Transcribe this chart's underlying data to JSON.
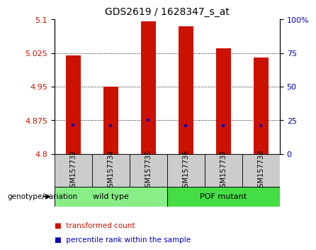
{
  "title": "GDS2619 / 1628347_s_at",
  "samples": [
    "GSM157732",
    "GSM157734",
    "GSM157735",
    "GSM157736",
    "GSM157737",
    "GSM157738"
  ],
  "bar_values": [
    5.02,
    4.95,
    5.095,
    5.085,
    5.035,
    5.015
  ],
  "percentile_values": [
    4.865,
    4.862,
    4.876,
    4.863,
    4.863,
    4.863
  ],
  "ylim_left": [
    4.8,
    5.1
  ],
  "ylim_right": [
    0,
    100
  ],
  "yticks_left": [
    4.8,
    4.875,
    4.95,
    5.025,
    5.1
  ],
  "ytick_labels_left": [
    "4.8",
    "4.875",
    "4.95",
    "5.025",
    "5.1"
  ],
  "yticks_right": [
    0,
    25,
    50,
    75,
    100
  ],
  "ytick_labels_right": [
    "0",
    "25",
    "50",
    "75",
    "100%"
  ],
  "bar_color": "#cc1100",
  "percentile_color": "#0000bb",
  "bar_width": 0.4,
  "groups": [
    {
      "label": "wild type",
      "indices": [
        0,
        1,
        2
      ],
      "color": "#88ee88"
    },
    {
      "label": "POF mutant",
      "indices": [
        3,
        4,
        5
      ],
      "color": "#44dd44"
    }
  ],
  "genotype_label": "genotype/variation",
  "legend_items": [
    {
      "label": "transformed count",
      "color": "#cc1100"
    },
    {
      "label": "percentile rank within the sample",
      "color": "#0000bb"
    }
  ],
  "grid_lines": [
    4.875,
    4.95,
    5.025
  ],
  "title_fontsize": 10,
  "tick_fontsize": 8,
  "label_fontsize": 7,
  "group_fontsize": 8,
  "legend_fontsize": 7.5
}
